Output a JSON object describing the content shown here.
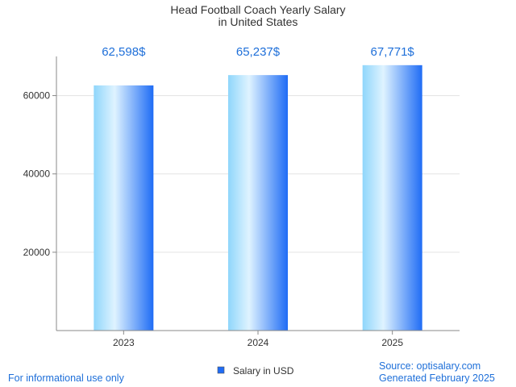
{
  "chart_data": {
    "type": "bar",
    "title": [
      "Head Football Coach Yearly Salary",
      "in United States"
    ],
    "categories": [
      "2023",
      "2024",
      "2025"
    ],
    "values": [
      62598,
      65237,
      67771
    ],
    "value_labels": [
      "62,598$",
      "65,237$",
      "67,771$"
    ],
    "ylim": [
      0,
      70000
    ],
    "yticks": [
      20000,
      40000,
      60000
    ],
    "ytick_labels": [
      "20000",
      "40000",
      "60000"
    ],
    "grid": true,
    "xlabel": "",
    "ylabel": "",
    "legend": {
      "label": "Salary in USD",
      "position": "bottom-center"
    }
  },
  "footer": {
    "left_note": "For informational use only",
    "source": "Source: optisalary.com",
    "generated": "Generated February 2025"
  },
  "colors": {
    "bar_light": "#dff3ff",
    "bar_mid": "#8fd6fb",
    "bar_dark": "#1f6cf5",
    "label_blue": "#1e6fd9",
    "note_blue": "#1e6fd9",
    "grid": "#e3e3e3",
    "axis": "#888888"
  }
}
